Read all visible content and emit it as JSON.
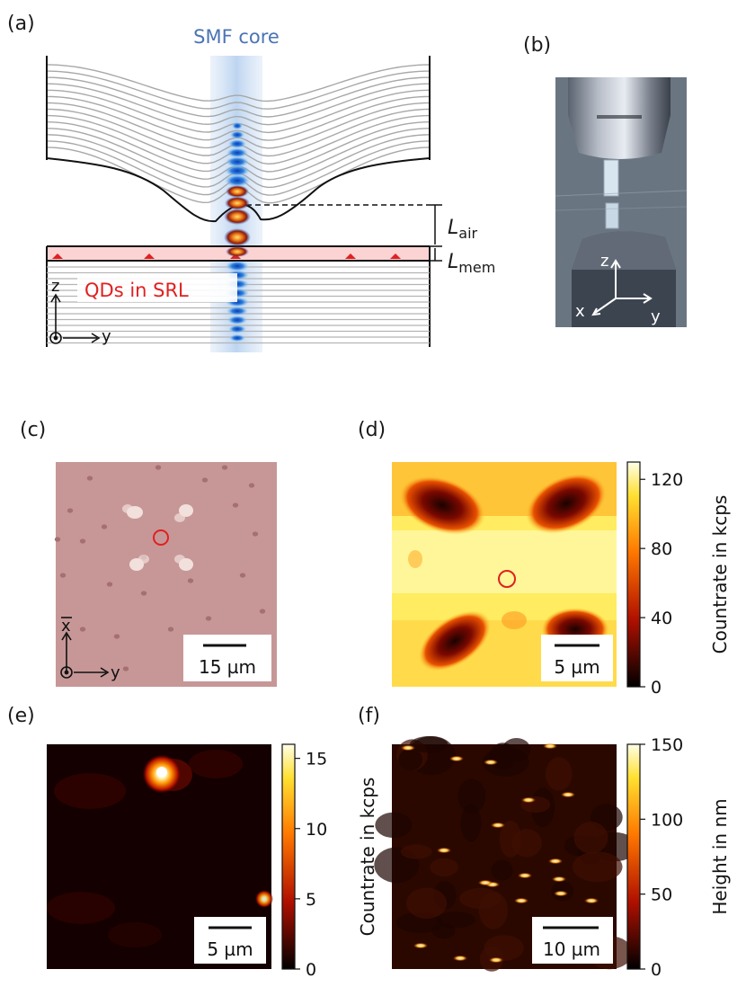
{
  "panels": {
    "a": {
      "label": "(a)",
      "core_label": "SMF core",
      "l_air_main": "L",
      "l_air_sub": "air",
      "l_mem_main": "L",
      "l_mem_sub": "mem",
      "qd_label": "QDs in SRL",
      "axis_z": "z",
      "axis_y": "y"
    },
    "b": {
      "label": "(b)",
      "axis_z": "z",
      "axis_x": "x",
      "axis_y": "y"
    },
    "c": {
      "label": "(c)",
      "axis_x": "x",
      "axis_y": "y",
      "scalebar": "15 µm"
    },
    "d": {
      "label": "(d)",
      "scalebar": "5 µm",
      "colorbar": {
        "label": "Countrate in kcps",
        "ticks": [
          "0",
          "40",
          "80",
          "120"
        ],
        "min": 0,
        "max": 130
      }
    },
    "e": {
      "label": "(e)",
      "scalebar": "5 µm",
      "colorbar": {
        "label": "Countrate in kcps",
        "ticks": [
          "0",
          "5",
          "10",
          "15"
        ],
        "min": 0,
        "max": 16
      }
    },
    "f": {
      "label": "(f)",
      "scalebar": "10 µm",
      "colorbar": {
        "label": "Height in nm",
        "ticks": [
          "0",
          "50",
          "100",
          "150"
        ],
        "min": 0,
        "max": 150
      }
    }
  },
  "colors": {
    "core_text": "#4a74b4",
    "qd_text": "#e02020",
    "marker": "#e02020",
    "line_grey": "#a8a8a8"
  }
}
